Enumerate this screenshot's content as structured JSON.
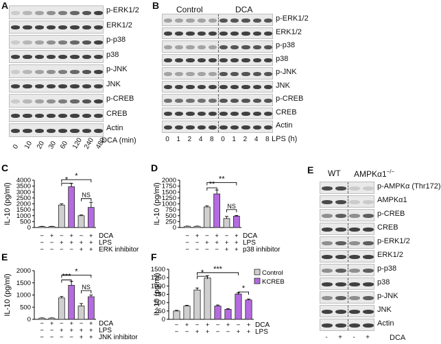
{
  "panels": {
    "a": {
      "label": "A",
      "rows": [
        "p-ERK1/2",
        "ERK1/2",
        "p-p38",
        "p38",
        "p-JNK",
        "JNK",
        "p-CREB",
        "CREB",
        "Actin"
      ],
      "times": [
        "0",
        "10",
        "20",
        "30",
        "60",
        "120",
        "240",
        "480"
      ],
      "xlabel": "DCA (min)"
    },
    "b": {
      "label": "B",
      "groups": [
        "Control",
        "DCA"
      ],
      "rows": [
        "p-ERK1/2",
        "ERK1/2",
        "p-p38",
        "p38",
        "p-JNK",
        "JNK",
        "p-CREB",
        "CREB",
        "Actin"
      ],
      "times": [
        "0",
        "1",
        "2",
        "4",
        "8",
        "0",
        "1",
        "2",
        "4",
        "8"
      ],
      "xlabel": "LPS (h)"
    },
    "e": {
      "label": "E",
      "groups": [
        "WT",
        "AMPKα1"
      ],
      "group_superscript": "−/−",
      "rows": [
        "p-AMPKα (Thr172)",
        "AMPKα1",
        "p-CREB",
        "CREB",
        "p-ERK1/2",
        "ERK1/2",
        "p-p38",
        "p38",
        "p-JNK",
        "JNK",
        "Actin"
      ],
      "signs": [
        "-",
        "+",
        "-",
        "+"
      ],
      "xlabel": "DCA"
    }
  },
  "chart_data": [
    {
      "id": "c",
      "label": "C",
      "type": "bar",
      "ylabel": "IL-10 (pg/ml)",
      "ylim": [
        0,
        4000
      ],
      "yticks": [
        0,
        500,
        1000,
        1500,
        2000,
        2500,
        3000,
        3500,
        4000
      ],
      "values": [
        80,
        80,
        1900,
        3450,
        1000,
        1700
      ],
      "errors": [
        20,
        20,
        100,
        280,
        60,
        430
      ],
      "colors": [
        "#ffffff",
        "#ffffff",
        "#cfcfcf",
        "#b56be0",
        "#cfcfcf",
        "#b56be0"
      ],
      "conditions": [
        {
          "name": "DCA",
          "signs": [
            "−",
            "+",
            "−",
            "+",
            "−",
            "+"
          ]
        },
        {
          "name": "LPS",
          "signs": [
            "−",
            "−",
            "+",
            "+",
            "+",
            "+"
          ]
        },
        {
          "name": "ERK inhibitor",
          "signs": [
            "−",
            "−",
            "−",
            "−",
            "+",
            "+"
          ]
        }
      ],
      "annotations": [
        {
          "text": "*",
          "from": 2,
          "to": 3,
          "level": 3750
        },
        {
          "text": "*",
          "from": 2,
          "to": 5,
          "level": 4050
        },
        {
          "text": "NS",
          "from": 4,
          "to": 5,
          "level": 2450
        }
      ]
    },
    {
      "id": "d",
      "label": "D",
      "type": "bar",
      "ylabel": "IL-10 (pg/ml)",
      "ylim": [
        0,
        2000
      ],
      "yticks": [
        0,
        250,
        500,
        750,
        1000,
        1250,
        1500,
        1750,
        2000
      ],
      "values": [
        50,
        50,
        870,
        1420,
        380,
        480
      ],
      "errors": [
        10,
        10,
        50,
        170,
        90,
        30
      ],
      "colors": [
        "#ffffff",
        "#ffffff",
        "#cfcfcf",
        "#b56be0",
        "#cfcfcf",
        "#b56be0"
      ],
      "conditions": [
        {
          "name": "DCA",
          "signs": [
            "−",
            "+",
            "−",
            "+",
            "−",
            "+"
          ]
        },
        {
          "name": "LPS",
          "signs": [
            "−",
            "−",
            "+",
            "+",
            "+",
            "+"
          ]
        },
        {
          "name": "p38 inhibitor",
          "signs": [
            "−",
            "−",
            "−",
            "−",
            "+",
            "+"
          ]
        }
      ],
      "annotations": [
        {
          "text": "**",
          "from": 2,
          "to": 3,
          "level": 1680
        },
        {
          "text": "**",
          "from": 2,
          "to": 5,
          "level": 1900
        },
        {
          "text": "NS",
          "from": 4,
          "to": 5,
          "level": 760
        }
      ]
    },
    {
      "id": "e",
      "label": "E",
      "type": "bar",
      "ylabel": "IL-10 (pg/ml)",
      "ylim": [
        0,
        2000
      ],
      "yticks": [
        0,
        500,
        1000,
        1500,
        2000
      ],
      "values": [
        50,
        50,
        880,
        1400,
        550,
        930
      ],
      "errors": [
        10,
        10,
        60,
        160,
        100,
        70
      ],
      "colors": [
        "#ffffff",
        "#ffffff",
        "#cfcfcf",
        "#b56be0",
        "#cfcfcf",
        "#b56be0"
      ],
      "conditions": [
        {
          "name": "DCA",
          "signs": [
            "−",
            "+",
            "−",
            "+",
            "−",
            "+"
          ]
        },
        {
          "name": "LPS",
          "signs": [
            "−",
            "−",
            "+",
            "+",
            "+",
            "+"
          ]
        },
        {
          "name": "JNK inhibitor",
          "signs": [
            "−",
            "−",
            "−",
            "−",
            "+",
            "+"
          ]
        }
      ],
      "annotations": [
        {
          "text": "***",
          "from": 2,
          "to": 3,
          "level": 1620
        },
        {
          "text": "*",
          "from": 2,
          "to": 5,
          "level": 1820
        },
        {
          "text": "NS",
          "from": 4,
          "to": 5,
          "level": 1180
        }
      ]
    },
    {
      "id": "f",
      "label": "F",
      "type": "bar",
      "ylabel": "IL-10 (pg/ml)",
      "ylim": [
        0,
        1500
      ],
      "yticks": [
        0,
        250,
        500,
        750,
        1000,
        1250,
        1500
      ],
      "series": [
        {
          "name": "Control",
          "color": "#cfcfcf"
        },
        {
          "name": "KCREB",
          "color": "#b56be0"
        }
      ],
      "values": [
        250,
        400,
        880,
        1240,
        400,
        300,
        760,
        580
      ],
      "errors": [
        20,
        20,
        60,
        70,
        30,
        20,
        40,
        30
      ],
      "colors": [
        "#cfcfcf",
        "#cfcfcf",
        "#cfcfcf",
        "#cfcfcf",
        "#b56be0",
        "#b56be0",
        "#b56be0",
        "#b56be0"
      ],
      "conditions": [
        {
          "name": "DCA",
          "signs": [
            "−",
            "+",
            "−",
            "+",
            "−",
            "+",
            "−",
            "+"
          ]
        },
        {
          "name": "LPS",
          "signs": [
            "−",
            "−",
            "+",
            "+",
            "−",
            "−",
            "+",
            "+"
          ]
        }
      ],
      "annotations": [
        {
          "text": "*",
          "from": 2,
          "to": 3,
          "level": 1290
        },
        {
          "text": "***",
          "from": 2,
          "to": 6,
          "level": 1400
        },
        {
          "text": "*",
          "from": 6,
          "to": 7,
          "level": 820
        }
      ]
    }
  ]
}
